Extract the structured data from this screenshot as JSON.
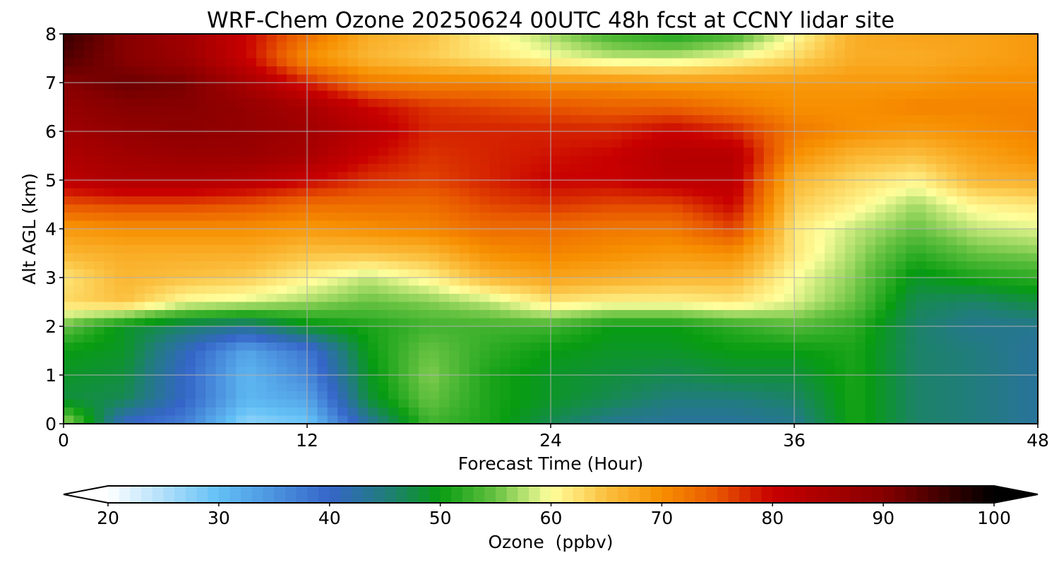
{
  "chart_data": {
    "type": "heatmap",
    "title": "WRF-Chem Ozone  20250624 00UTC 48h fcst at CCNY lidar site",
    "xlabel": "Forecast Time (Hour)",
    "ylabel": "Alt AGL (km)",
    "xlim": [
      0,
      48
    ],
    "ylim": [
      0,
      8
    ],
    "x_ticks": [
      0,
      12,
      24,
      36,
      48
    ],
    "y_ticks": [
      0,
      1,
      2,
      3,
      4,
      5,
      6,
      7,
      8
    ],
    "grid": true,
    "x_hours": [
      0,
      3,
      6,
      9,
      12,
      15,
      18,
      21,
      24,
      27,
      30,
      33,
      36,
      39,
      42,
      45,
      48
    ],
    "altitudes_km": [
      0,
      0.5,
      1,
      1.5,
      2,
      2.5,
      3,
      3.5,
      4,
      4.5,
      5,
      5.5,
      6,
      6.5,
      7,
      7.5,
      8
    ],
    "values_ppbv": [
      [
        58,
        40,
        37,
        27,
        29,
        43,
        53,
        51,
        47,
        44,
        43,
        43,
        44,
        51,
        46,
        45,
        43
      ],
      [
        48,
        47,
        40,
        31,
        33,
        48,
        55,
        51,
        49,
        47,
        45,
        45,
        46,
        51,
        46,
        45,
        43
      ],
      [
        49,
        48,
        40,
        31,
        36,
        49,
        56,
        51,
        49,
        48,
        47,
        48,
        48,
        51,
        46,
        45,
        43
      ],
      [
        50,
        49,
        41,
        33,
        38,
        50,
        55,
        52,
        50,
        49,
        49,
        50,
        50,
        51,
        46,
        45,
        43
      ],
      [
        55,
        49,
        46,
        44,
        49,
        51,
        53,
        53,
        53,
        50,
        50,
        52,
        54,
        52,
        46,
        44,
        44
      ],
      [
        63,
        65,
        60,
        59,
        57,
        55,
        56,
        58,
        62,
        61,
        61,
        62,
        59,
        55,
        47,
        46,
        48
      ],
      [
        62,
        66,
        65,
        64,
        61,
        58,
        61,
        66,
        68,
        67,
        66,
        66,
        60,
        56,
        49,
        51,
        52
      ],
      [
        66,
        67,
        67,
        67,
        65,
        65,
        66,
        70,
        71,
        70,
        69,
        70,
        62,
        57,
        52,
        55,
        56
      ],
      [
        69,
        70,
        70,
        70,
        69,
        70,
        71,
        73,
        73,
        72,
        72,
        76,
        62,
        58,
        55,
        58,
        59
      ],
      [
        75,
        76,
        76,
        75,
        73,
        73,
        73,
        76,
        77,
        76,
        76,
        80,
        64,
        61,
        57,
        61,
        62
      ],
      [
        82,
        84,
        84,
        83,
        80,
        77,
        76,
        78,
        80,
        80,
        82,
        82,
        66,
        63,
        61,
        66,
        67
      ],
      [
        84,
        86,
        87,
        87,
        85,
        80,
        77,
        78,
        79,
        80,
        83,
        83,
        70,
        66,
        65,
        68,
        70
      ],
      [
        86,
        88,
        89,
        88,
        86,
        82,
        78,
        78,
        78,
        78,
        80,
        78,
        72,
        70,
        69,
        70,
        71
      ],
      [
        88,
        90,
        90,
        88,
        85,
        80,
        77,
        76,
        75,
        74,
        74,
        72,
        70,
        70,
        71,
        71,
        71
      ],
      [
        90,
        92,
        91,
        85,
        78,
        72,
        71,
        71,
        70,
        70,
        69,
        69,
        69,
        69,
        69,
        70,
        70
      ],
      [
        94,
        90,
        87,
        80,
        70,
        66,
        64,
        62,
        60,
        58,
        58,
        60,
        63,
        67,
        67,
        68,
        69
      ],
      [
        96,
        90,
        86,
        80,
        73,
        67,
        65,
        61,
        57,
        53,
        51,
        53,
        60,
        67,
        68,
        68,
        69
      ]
    ],
    "colorbar": {
      "label": "Ozone  (ppbv)",
      "ticks": [
        20,
        30,
        40,
        50,
        60,
        70,
        80,
        90,
        100
      ],
      "vmin": 20,
      "vmax": 100,
      "extend": "both",
      "placement": "bottom",
      "palette": [
        {
          "v": 20,
          "c": "#ffffff"
        },
        {
          "v": 30,
          "c": "#62c0f5"
        },
        {
          "v": 40,
          "c": "#3565c8"
        },
        {
          "v": 45,
          "c": "#217c7e"
        },
        {
          "v": 50,
          "c": "#079c11"
        },
        {
          "v": 55,
          "c": "#67c242"
        },
        {
          "v": 60,
          "c": "#ffff9c"
        },
        {
          "v": 65,
          "c": "#fbc03f"
        },
        {
          "v": 70,
          "c": "#f78f00"
        },
        {
          "v": 75,
          "c": "#e85600"
        },
        {
          "v": 80,
          "c": "#c80000"
        },
        {
          "v": 90,
          "c": "#870000"
        },
        {
          "v": 100,
          "c": "#000000"
        }
      ],
      "under_color": "#ffffff",
      "over_color": "#000000"
    }
  }
}
